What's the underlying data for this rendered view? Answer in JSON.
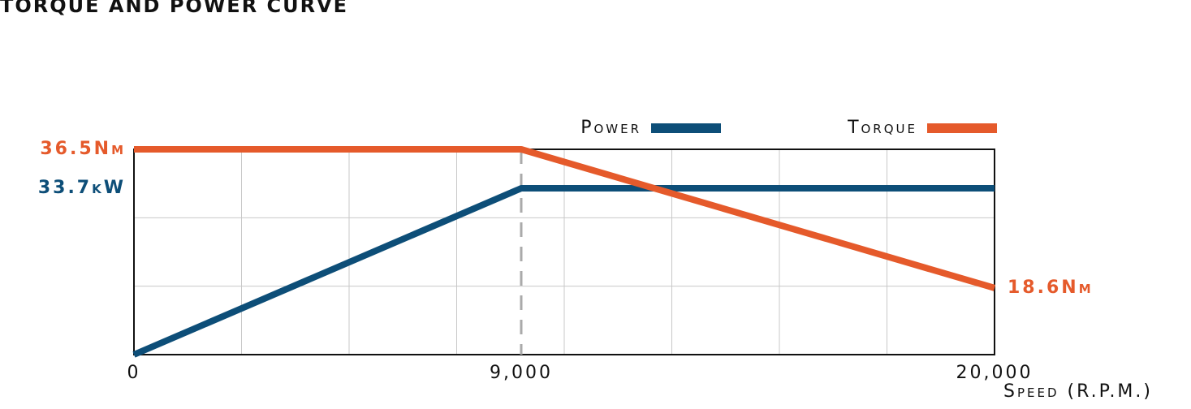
{
  "chart_data": {
    "type": "line",
    "title": "TORQUE AND POWER CURVE",
    "x_label": "Speed (R.P.M.)",
    "x": [
      0,
      9000,
      20000
    ],
    "xlim": [
      0,
      20000
    ],
    "xticks": [
      0,
      {
        "value": 9000,
        "label": "9,000"
      },
      {
        "value": 20000,
        "label": "20,000"
      }
    ],
    "ylim": [
      0,
      41.6
    ],
    "y2lim": [
      10,
      36.5
    ],
    "grid": true,
    "legend": "top-right",
    "series": [
      {
        "name": "Power",
        "color": "#0d4e78",
        "values": [
          0,
          33.7,
          33.7
        ],
        "value_labels": [
          null,
          "33.7kW",
          null
        ]
      },
      {
        "name": "Torque",
        "color": "#e55a2b",
        "axis": "y2",
        "values": [
          36.5,
          36.5,
          18.6
        ],
        "value_labels": [
          "36.5Nm",
          null,
          "18.6Nm"
        ]
      }
    ]
  }
}
